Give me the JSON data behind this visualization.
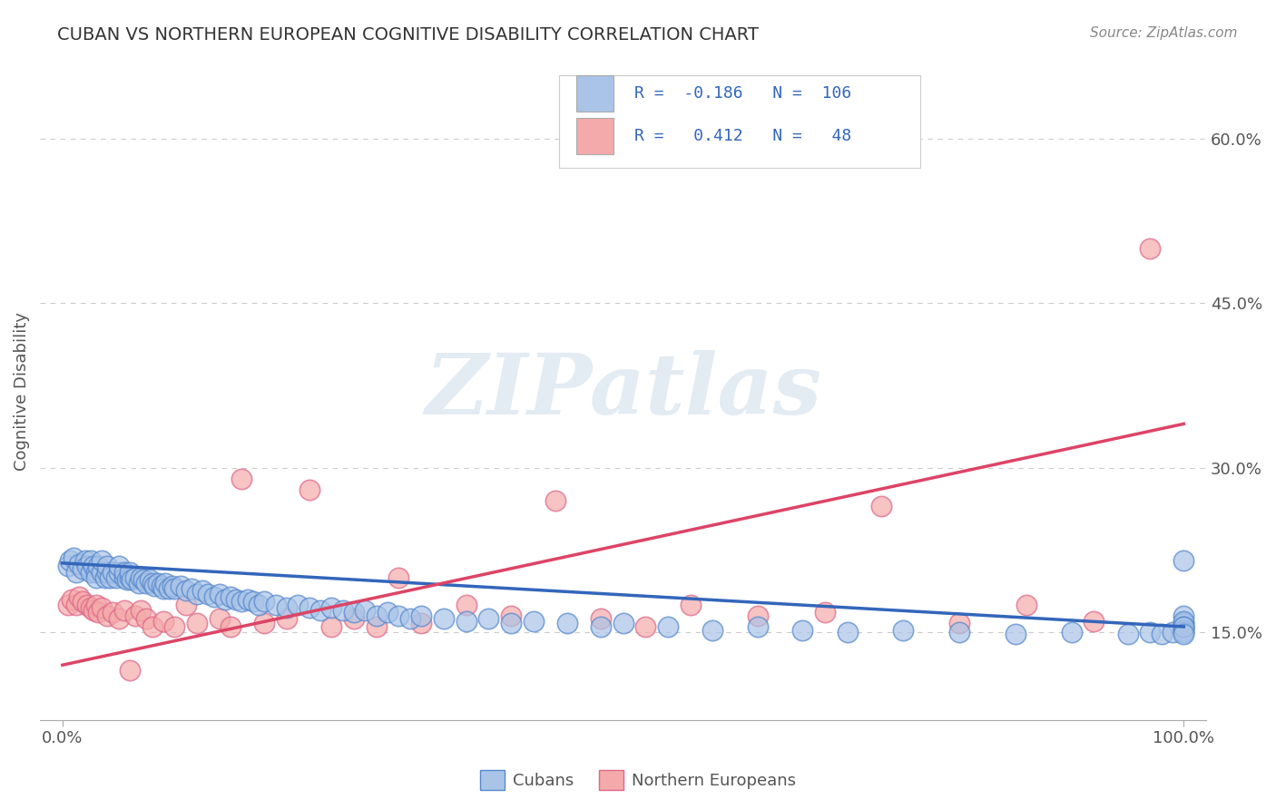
{
  "title": "CUBAN VS NORTHERN EUROPEAN COGNITIVE DISABILITY CORRELATION CHART",
  "source": "Source: ZipAtlas.com",
  "ylabel": "Cognitive Disability",
  "xlim": [
    -0.02,
    1.02
  ],
  "ylim": [
    0.07,
    0.67
  ],
  "yticks_right": [
    0.15,
    0.3,
    0.45,
    0.6
  ],
  "ytick_labels_right": [
    "15.0%",
    "30.0%",
    "45.0%",
    "60.0%"
  ],
  "xtick_labels": [
    "0.0%",
    "100.0%"
  ],
  "background_color": "#ffffff",
  "grid_color": "#cccccc",
  "watermark_text": "ZIPatlas",
  "cubans_color": "#aac4e8",
  "northern_color": "#f4aaaa",
  "cubans_edge_color": "#5588cc",
  "northern_edge_color": "#dd6688",
  "cubans_line_color": "#3366bb",
  "northern_line_color": "#dd4466",
  "cubans_scatter": {
    "x": [
      0.005,
      0.007,
      0.01,
      0.012,
      0.015,
      0.018,
      0.02,
      0.022,
      0.025,
      0.025,
      0.028,
      0.03,
      0.03,
      0.032,
      0.035,
      0.035,
      0.038,
      0.04,
      0.04,
      0.042,
      0.045,
      0.048,
      0.05,
      0.05,
      0.055,
      0.055,
      0.058,
      0.06,
      0.06,
      0.062,
      0.065,
      0.068,
      0.07,
      0.072,
      0.075,
      0.078,
      0.08,
      0.082,
      0.085,
      0.088,
      0.09,
      0.092,
      0.095,
      0.098,
      0.1,
      0.105,
      0.11,
      0.115,
      0.12,
      0.125,
      0.13,
      0.135,
      0.14,
      0.145,
      0.15,
      0.155,
      0.16,
      0.165,
      0.17,
      0.175,
      0.18,
      0.19,
      0.2,
      0.21,
      0.22,
      0.23,
      0.24,
      0.25,
      0.26,
      0.27,
      0.28,
      0.29,
      0.3,
      0.31,
      0.32,
      0.34,
      0.36,
      0.38,
      0.4,
      0.42,
      0.45,
      0.48,
      0.5,
      0.54,
      0.58,
      0.62,
      0.66,
      0.7,
      0.75,
      0.8,
      0.85,
      0.9,
      0.95,
      0.97,
      0.98,
      0.99,
      1.0,
      1.0,
      1.0,
      1.0,
      1.0,
      1.0,
      1.0,
      1.0,
      1.0,
      1.0
    ],
    "y": [
      0.21,
      0.215,
      0.218,
      0.205,
      0.212,
      0.208,
      0.215,
      0.21,
      0.205,
      0.215,
      0.21,
      0.205,
      0.2,
      0.21,
      0.205,
      0.215,
      0.2,
      0.205,
      0.21,
      0.2,
      0.205,
      0.2,
      0.205,
      0.21,
      0.2,
      0.205,
      0.198,
      0.2,
      0.205,
      0.198,
      0.2,
      0.195,
      0.2,
      0.198,
      0.195,
      0.198,
      0.195,
      0.192,
      0.195,
      0.192,
      0.19,
      0.195,
      0.19,
      0.192,
      0.19,
      0.192,
      0.188,
      0.19,
      0.185,
      0.188,
      0.185,
      0.182,
      0.185,
      0.18,
      0.182,
      0.18,
      0.178,
      0.18,
      0.178,
      0.175,
      0.178,
      0.175,
      0.172,
      0.175,
      0.172,
      0.17,
      0.172,
      0.17,
      0.168,
      0.17,
      0.165,
      0.168,
      0.165,
      0.162,
      0.165,
      0.162,
      0.16,
      0.162,
      0.158,
      0.16,
      0.158,
      0.155,
      0.158,
      0.155,
      0.152,
      0.155,
      0.152,
      0.15,
      0.152,
      0.15,
      0.148,
      0.15,
      0.148,
      0.15,
      0.148,
      0.15,
      0.215,
      0.155,
      0.165,
      0.158,
      0.16,
      0.155,
      0.152,
      0.15,
      0.155,
      0.148
    ]
  },
  "northern_scatter": {
    "x": [
      0.005,
      0.008,
      0.012,
      0.015,
      0.018,
      0.022,
      0.025,
      0.028,
      0.03,
      0.032,
      0.035,
      0.04,
      0.045,
      0.05,
      0.055,
      0.06,
      0.065,
      0.07,
      0.075,
      0.08,
      0.09,
      0.1,
      0.11,
      0.12,
      0.14,
      0.15,
      0.16,
      0.18,
      0.2,
      0.22,
      0.24,
      0.26,
      0.28,
      0.3,
      0.32,
      0.36,
      0.4,
      0.44,
      0.48,
      0.52,
      0.56,
      0.62,
      0.68,
      0.73,
      0.8,
      0.86,
      0.92,
      0.97
    ],
    "y": [
      0.175,
      0.18,
      0.175,
      0.182,
      0.178,
      0.175,
      0.172,
      0.17,
      0.175,
      0.168,
      0.172,
      0.165,
      0.168,
      0.162,
      0.17,
      0.115,
      0.165,
      0.17,
      0.162,
      0.155,
      0.16,
      0.155,
      0.175,
      0.158,
      0.162,
      0.155,
      0.29,
      0.158,
      0.162,
      0.28,
      0.155,
      0.162,
      0.155,
      0.2,
      0.158,
      0.175,
      0.165,
      0.27,
      0.162,
      0.155,
      0.175,
      0.165,
      0.168,
      0.265,
      0.158,
      0.175,
      0.16,
      0.5
    ]
  },
  "cubans_line_endpoints": [
    [
      0.0,
      0.213
    ],
    [
      1.0,
      0.155
    ]
  ],
  "northern_line_endpoints": [
    [
      0.0,
      0.12
    ],
    [
      1.0,
      0.34
    ]
  ]
}
